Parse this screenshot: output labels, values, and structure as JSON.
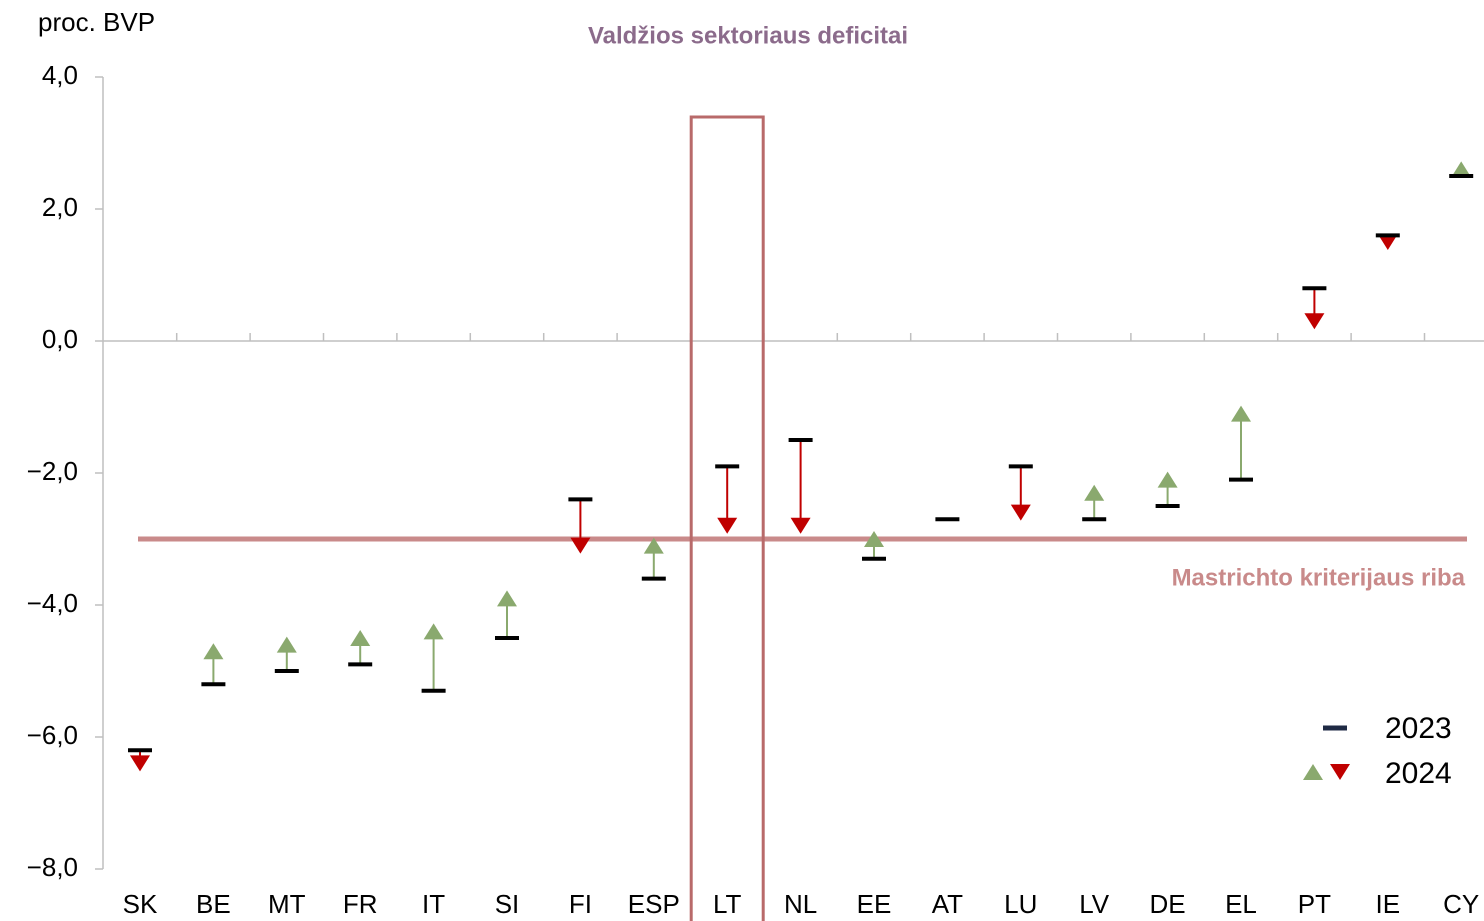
{
  "chart_data": {
    "type": "change",
    "title": "Valdžios sektoriaus deficitai",
    "y_label": "proc. BVP",
    "categories": [
      "SK",
      "BE",
      "MT",
      "FR",
      "IT",
      "SI",
      "FI",
      "ESP",
      "LT",
      "NL",
      "EE",
      "AT",
      "LU",
      "LV",
      "DE",
      "EL",
      "PT",
      "IE",
      "CY"
    ],
    "series": [
      {
        "name": "2023",
        "color": "#000000",
        "values": [
          -6.2,
          -5.2,
          -5.0,
          -4.9,
          -5.3,
          -4.5,
          -2.4,
          -3.6,
          -1.9,
          -1.5,
          -3.3,
          -2.7,
          -1.9,
          -2.7,
          -2.5,
          -2.1,
          0.8,
          1.6,
          2.5
        ]
      },
      {
        "name": "2024",
        "colors": [
          "#8aa96e",
          "#c00000"
        ],
        "values": [
          -6.4,
          -4.7,
          -4.6,
          -4.5,
          -4.4,
          -3.9,
          -3.1,
          -3.1,
          -2.8,
          -2.8,
          -3.0,
          -2.7,
          -2.6,
          -2.3,
          -2.1,
          -1.1,
          0.3,
          1.5,
          2.6
        ]
      }
    ],
    "ylim": [
      -8,
      4
    ],
    "yticks": [
      {
        "value": 4,
        "label": "4,0"
      },
      {
        "value": 2,
        "label": "2,0"
      },
      {
        "value": 0,
        "label": "0,0"
      },
      {
        "value": -2,
        "label": "−2,0"
      },
      {
        "value": -4,
        "label": "−4,0"
      },
      {
        "value": -6,
        "label": "−6,0"
      },
      {
        "value": -8,
        "label": "−8,0"
      }
    ],
    "reference_line": {
      "value": -3,
      "label": "Mastrichto kriterijaus riba",
      "color": "#c98a8a"
    },
    "highlight": "LT",
    "legend": "lower right"
  }
}
